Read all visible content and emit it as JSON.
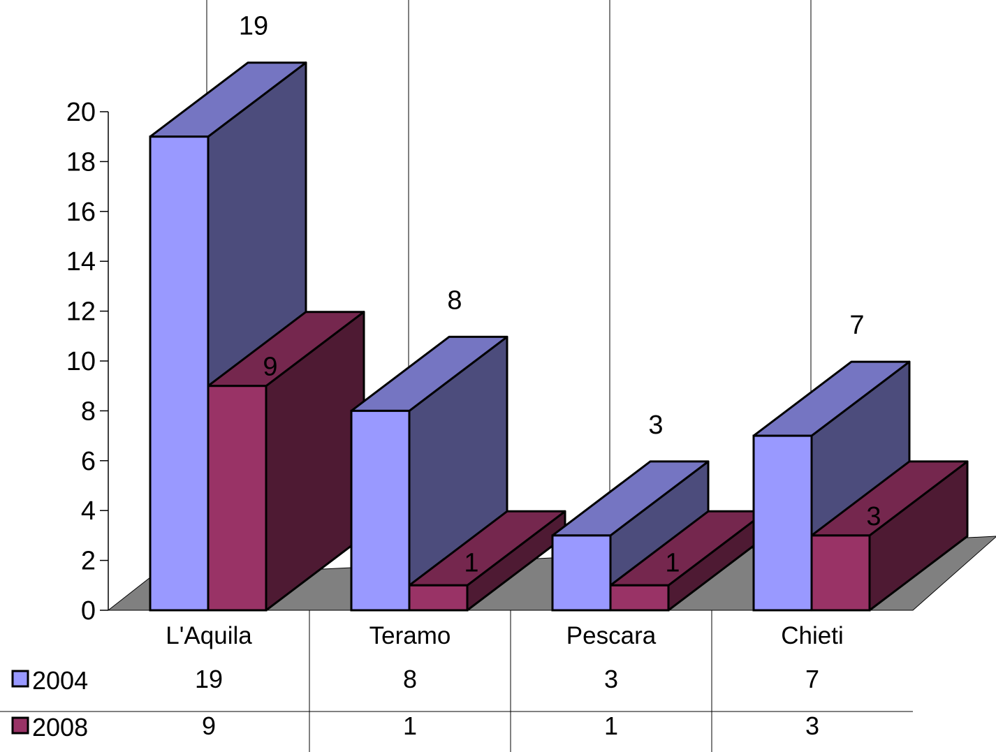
{
  "chart_data": {
    "type": "bar",
    "title": "",
    "xlabel": "",
    "ylabel": "",
    "categories": [
      "L'Aquila",
      "Teramo",
      "Pescara",
      "Chieti"
    ],
    "series": [
      {
        "name": "2004",
        "values": [
          19,
          8,
          3,
          7
        ],
        "color": "#9999ff",
        "top_color": "#7575c2",
        "side_color": "#4c4c7c"
      },
      {
        "name": "2008",
        "values": [
          9,
          1,
          1,
          3
        ],
        "color": "#993366",
        "top_color": "#75274e",
        "side_color": "#4e1a33"
      }
    ],
    "y_ticks": [
      "0",
      "2",
      "4",
      "6",
      "8",
      "10",
      "12",
      "14",
      "16",
      "18",
      "20"
    ],
    "ylim": [
      0,
      20
    ],
    "floor_color": "#808080",
    "style": "3d-clustered-bar",
    "data_table": true,
    "legend_placement": "data-table-left"
  }
}
